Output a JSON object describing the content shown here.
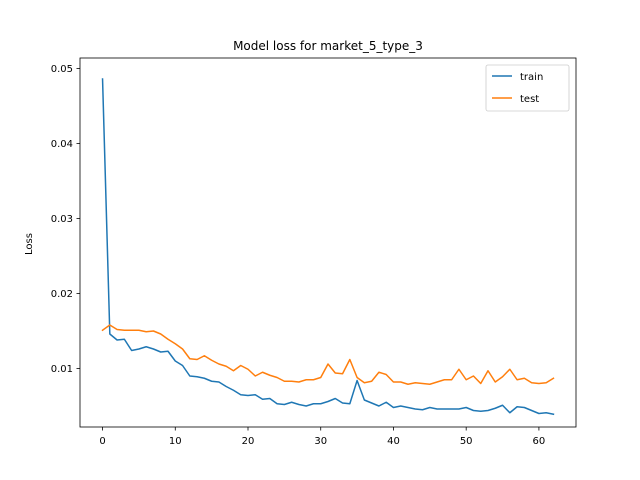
{
  "chart_data": {
    "type": "line",
    "title": "Model loss for market_5_type_3",
    "xlabel": "",
    "ylabel": "Loss",
    "xlim": [
      -3.1,
      65.1
    ],
    "ylim": [
      0.0022,
      0.0514
    ],
    "xticks": [
      0,
      10,
      20,
      30,
      40,
      50,
      60
    ],
    "yticks": [
      0.01,
      0.02,
      0.03,
      0.04,
      0.05
    ],
    "ytick_labels": [
      "0.01",
      "0.02",
      "0.03",
      "0.04",
      "0.05"
    ],
    "grid": false,
    "legend_position": "top-right",
    "x": [
      0,
      1,
      2,
      3,
      4,
      5,
      6,
      7,
      8,
      9,
      10,
      11,
      12,
      13,
      14,
      15,
      16,
      17,
      18,
      19,
      20,
      21,
      22,
      23,
      24,
      25,
      26,
      27,
      28,
      29,
      30,
      31,
      32,
      33,
      34,
      35,
      36,
      37,
      38,
      39,
      40,
      41,
      42,
      43,
      44,
      45,
      46,
      47,
      48,
      49,
      50,
      51,
      52,
      53,
      54,
      55,
      56,
      57,
      58,
      59,
      60,
      61,
      62
    ],
    "series": [
      {
        "name": "train",
        "color": "#1f77b4",
        "values": [
          0.0486,
          0.0146,
          0.0138,
          0.0139,
          0.0124,
          0.0126,
          0.0129,
          0.0126,
          0.0122,
          0.0123,
          0.011,
          0.0104,
          0.009,
          0.0089,
          0.0087,
          0.0083,
          0.0082,
          0.0076,
          0.0071,
          0.0065,
          0.0064,
          0.0065,
          0.0059,
          0.006,
          0.0053,
          0.0052,
          0.0055,
          0.0052,
          0.005,
          0.0053,
          0.0053,
          0.0056,
          0.006,
          0.0054,
          0.0053,
          0.0084,
          0.0058,
          0.0054,
          0.005,
          0.0055,
          0.0048,
          0.005,
          0.0048,
          0.0046,
          0.0045,
          0.0048,
          0.0046,
          0.0046,
          0.0046,
          0.0046,
          0.0048,
          0.0044,
          0.0043,
          0.0044,
          0.0047,
          0.0051,
          0.0041,
          0.0049,
          0.0048,
          0.0044,
          0.004,
          0.0041,
          0.0039
        ]
      },
      {
        "name": "test",
        "color": "#ff7f0e",
        "values": [
          0.0151,
          0.0158,
          0.0152,
          0.0151,
          0.0151,
          0.0151,
          0.0149,
          0.015,
          0.0146,
          0.0139,
          0.0133,
          0.0126,
          0.0113,
          0.0112,
          0.0117,
          0.0111,
          0.0106,
          0.0103,
          0.0097,
          0.0104,
          0.0099,
          0.009,
          0.0095,
          0.0091,
          0.0088,
          0.0083,
          0.0083,
          0.0082,
          0.0085,
          0.0085,
          0.0088,
          0.0106,
          0.0094,
          0.0093,
          0.0112,
          0.0088,
          0.0081,
          0.0083,
          0.0095,
          0.0092,
          0.0082,
          0.0082,
          0.0079,
          0.0081,
          0.008,
          0.0079,
          0.0082,
          0.0085,
          0.0085,
          0.0099,
          0.0085,
          0.009,
          0.008,
          0.0097,
          0.0082,
          0.0089,
          0.0099,
          0.0085,
          0.0087,
          0.0081,
          0.008,
          0.0081,
          0.0087
        ]
      }
    ]
  }
}
